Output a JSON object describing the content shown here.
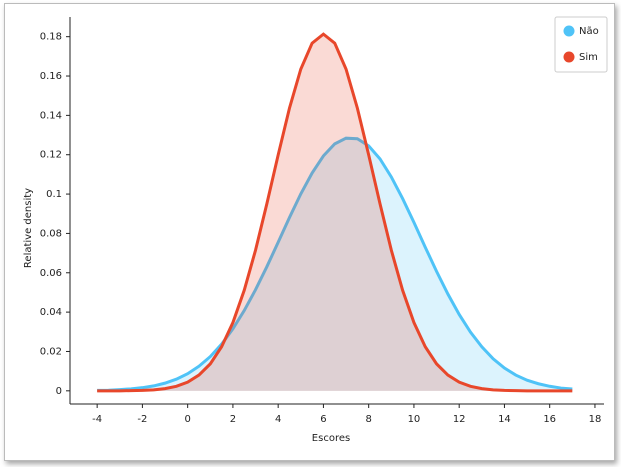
{
  "chart_data": {
    "type": "area",
    "x_label": "Escores",
    "y_label": "Relative density",
    "x": [
      -4,
      -3.5,
      -3,
      -2.5,
      -2,
      -1.5,
      -1,
      -0.5,
      0,
      0.5,
      1,
      1.5,
      2,
      2.5,
      3,
      3.5,
      4,
      4.5,
      5,
      5.5,
      6,
      6.5,
      7,
      7.5,
      8,
      8.5,
      9,
      9.5,
      10,
      10.5,
      11,
      11.5,
      12,
      12.5,
      13,
      13.5,
      14,
      14.5,
      15,
      15.5,
      16,
      16.5,
      17
    ],
    "series": [
      {
        "name": "Não",
        "color": "#4fc3f7",
        "values": [
          0.0002,
          0.0003,
          0.0006,
          0.001,
          0.0016,
          0.0025,
          0.0039,
          0.0059,
          0.0087,
          0.0125,
          0.0174,
          0.0237,
          0.0315,
          0.0408,
          0.0514,
          0.0631,
          0.0755,
          0.0881,
          0.1001,
          0.1107,
          0.1194,
          0.1255,
          0.1284,
          0.1281,
          0.1245,
          0.1179,
          0.1087,
          0.0977,
          0.0856,
          0.073,
          0.0607,
          0.0492,
          0.0388,
          0.0298,
          0.0224,
          0.0163,
          0.0116,
          0.008,
          0.0054,
          0.0036,
          0.0023,
          0.0014,
          0.0009
        ]
      },
      {
        "name": "Sim",
        "color": "#e8472b",
        "values": [
          0,
          0,
          0,
          0.0001,
          0.0002,
          0.0005,
          0.0011,
          0.0023,
          0.0044,
          0.008,
          0.0137,
          0.0224,
          0.0347,
          0.0511,
          0.0715,
          0.0951,
          0.1199,
          0.1437,
          0.1635,
          0.1767,
          0.1813,
          0.1767,
          0.1635,
          0.1437,
          0.1199,
          0.0951,
          0.0715,
          0.0511,
          0.0347,
          0.0224,
          0.0137,
          0.008,
          0.0044,
          0.0023,
          0.0011,
          0.0005,
          0.0002,
          0.0001,
          0,
          0,
          0,
          0,
          0
        ]
      }
    ],
    "xlim": [
      -5.2,
      18.4
    ],
    "ylim": [
      -0.0067,
      0.19
    ],
    "xticks": [
      -4,
      -2,
      0,
      2,
      4,
      6,
      8,
      10,
      12,
      14,
      16,
      18
    ],
    "yticks": [
      0,
      0.02,
      0.04,
      0.06,
      0.08,
      0.1,
      0.12,
      0.14,
      0.16,
      0.18
    ],
    "legend": "top-right"
  }
}
